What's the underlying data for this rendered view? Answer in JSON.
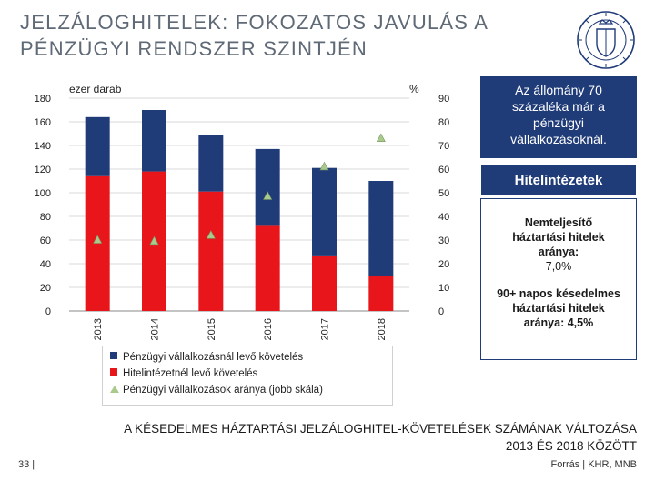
{
  "slide": {
    "title_line1": "JELZÁLOGHITELEK: FOKOZATOS JAVULÁS A",
    "title_line2": "PÉNZÜGYI RENDSZER SZINTJÉN",
    "page_number": "33 |",
    "source": "Forrás | KHR, MNB",
    "caption_line1": "A KÉSEDELMES HÁZTARTÁSI JELZÁLOGHITEL-KÖVETELÉSEK SZÁMÁNAK VÁLTOZÁSA",
    "caption_line2": "2013 ÉS 2018 KÖZÖTT"
  },
  "callouts": {
    "box1_text": "Az állomány 70 százaléka már a pénzügyi vállalkozásoknál.",
    "box2_text": "Hitelintézetek",
    "box3_line1": "Nemteljesítő háztartási hitelek aránya:",
    "box3_value1": "7,0%",
    "box3_line2": "90+ napos késedelmes háztartási hitelek aránya:",
    "box3_value2": "4,5%"
  },
  "colors": {
    "navy": "#1f3b78",
    "red": "#e8161b",
    "triangle": "#a9c98d",
    "title_gray": "#5f6a76"
  },
  "chart_data": {
    "type": "bar",
    "stacked": true,
    "categories": [
      "2013",
      "2014",
      "2015",
      "2016",
      "2017",
      "2018"
    ],
    "series": [
      {
        "name": "Hitelintézetnél levő követelés",
        "color": "#e8161b",
        "axis": "left",
        "values": [
          114,
          118,
          101,
          72,
          47,
          30
        ]
      },
      {
        "name": "Pénzügyi vállalkozásnál levő követelés",
        "color": "#1f3b78",
        "axis": "left",
        "values": [
          50,
          52,
          48,
          65,
          74,
          80
        ]
      },
      {
        "name": "Pénzügyi vállalkozások aránya (jobb skála)",
        "color": "#a9c98d",
        "axis": "right",
        "type": "scatter",
        "values": [
          30,
          29.5,
          32,
          48.5,
          61,
          73
        ]
      }
    ],
    "ylabel_left": "ezer darab",
    "ylabel_right": "%",
    "ylim_left": [
      0,
      180
    ],
    "ylim_right": [
      0,
      90
    ],
    "yticks_left": [
      "0",
      "20",
      "40",
      "60",
      "80",
      "100",
      "120",
      "140",
      "160",
      "180"
    ],
    "yticks_right": [
      "0",
      "10",
      "20",
      "30",
      "40",
      "50",
      "60",
      "70",
      "80",
      "90"
    ],
    "legend_labels": [
      "Pénzügyi vállalkozásnál levő követelés",
      "Hitelintézetnél levő követelés",
      "Pénzügyi vállalkozások aránya (jobb skála)"
    ],
    "grid": true,
    "legend_position": "bottom"
  }
}
